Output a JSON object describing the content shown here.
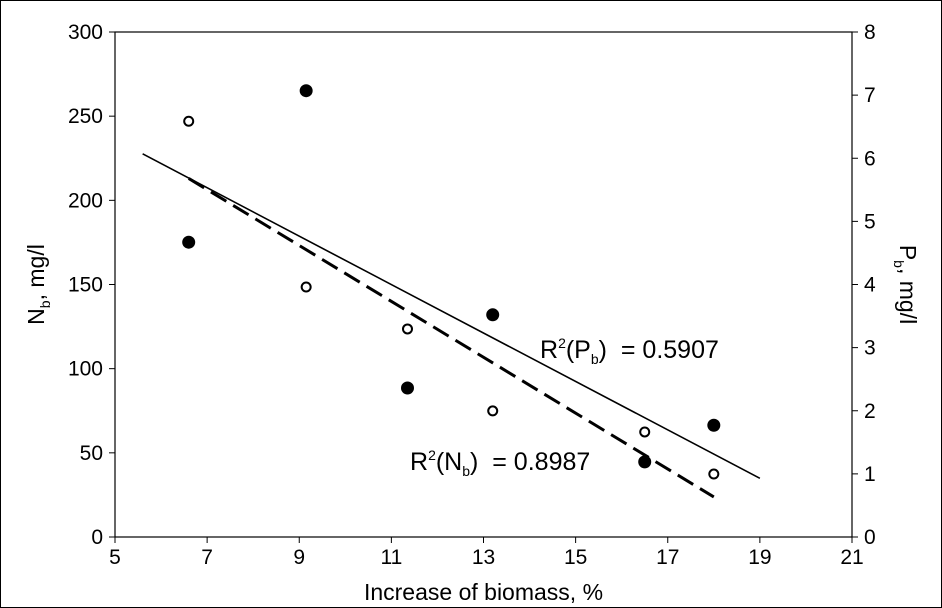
{
  "chart_data": {
    "type": "scatter",
    "xlabel": "Increase of biomass, %",
    "ylabel": {
      "base": "N",
      "sub": "b",
      "tail": ", mg/l"
    },
    "y2label": {
      "base": "P",
      "sub": "b",
      "tail": ", mg/l"
    },
    "xlim": [
      5,
      21
    ],
    "xticks": [
      5,
      7,
      9,
      11,
      13,
      15,
      17,
      19,
      21
    ],
    "ylim": [
      0,
      300
    ],
    "yticks": [
      0,
      50,
      100,
      150,
      200,
      250,
      300
    ],
    "y2lim": [
      0,
      8
    ],
    "y2ticks": [
      0,
      1,
      2,
      3,
      4,
      5,
      6,
      7,
      8
    ],
    "series": [
      {
        "marker": "open",
        "color": "#000000",
        "x": [
          6.6,
          9.15,
          11.35,
          13.2,
          16.5,
          18.0
        ],
        "values": [
          247,
          148.5,
          123.6,
          74.9,
          62.4,
          37.4
        ]
      },
      {
        "marker": "filled",
        "color": "#000000",
        "axis": "y2",
        "x": [
          6.6,
          9.15,
          11.35,
          13.2,
          16.5,
          18.0
        ],
        "values": [
          4.67,
          7.07,
          2.36,
          3.52,
          1.19,
          1.77
        ]
      }
    ],
    "trendlines": [
      {
        "dashed": false,
        "axis": "y2",
        "x": [
          5.6,
          19.0
        ],
        "values": [
          6.07,
          0.93
        ]
      },
      {
        "dashed": true,
        "x": [
          6.6,
          18.0
        ],
        "values": [
          213,
          23.8
        ]
      }
    ],
    "annotations": [
      {
        "base": "R",
        "sup": "2",
        "text": "(P",
        "sub": "b",
        "tail": ")  = 0.5907"
      },
      {
        "base": "R",
        "sup": "2",
        "text": "(N",
        "sub": "b",
        "tail": ")  = 0.8987"
      }
    ]
  }
}
